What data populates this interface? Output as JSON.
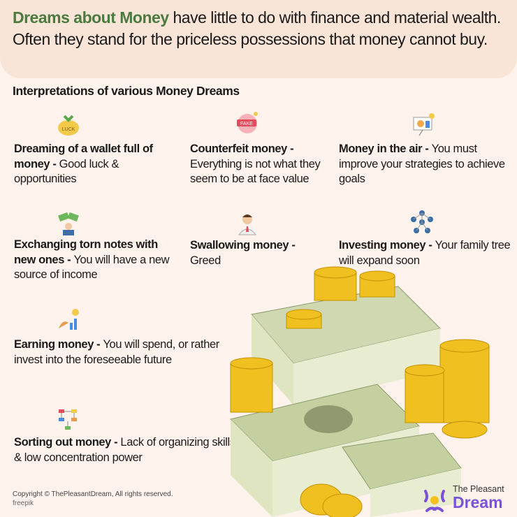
{
  "intro": {
    "highlight": "Dreams about Money",
    "rest": " have little to do with finance and material wealth. Often they stand for the priceless possessions that money cannot buy."
  },
  "subtitle": "Interpretations of various Money Dreams",
  "items": [
    {
      "title": "Dreaming of a wallet full of money - ",
      "text": "Good luck & opportunities",
      "icon": "luck-money-bag-icon"
    },
    {
      "title": "Counterfeit money - ",
      "text": "Everything is not what they seem to be at face value",
      "icon": "fake-tag-icon"
    },
    {
      "title": "Money in the air - ",
      "text": "You must improve your strategies to achieve goals",
      "icon": "presentation-board-icon"
    },
    {
      "title": "Exchanging torn notes with new ones - ",
      "text": "You will have a new source of income",
      "icon": "money-exchange-icon"
    },
    {
      "title": "Swallowing money - ",
      "text": "Greed",
      "icon": "businessman-icon"
    },
    {
      "title": "Investing money - ",
      "text": "Your family tree will expand soon",
      "icon": "network-people-icon"
    },
    {
      "title": "Earning money - ",
      "text": "You will spend, or rather invest into the foreseeable future",
      "icon": "money-growth-icon"
    },
    {
      "title": "Sorting out money - ",
      "text": "Lack of organizing skills & low concentration power",
      "icon": "flowchart-icon"
    }
  ],
  "footer": {
    "copyright": "Copyright © ThePleasantDream, All rights reserved.",
    "credit": "freepik"
  },
  "logo": {
    "line1": "The Pleasant",
    "line2": "Dream"
  },
  "colors": {
    "background": "#fdf3ec",
    "header": "#f8e5d7",
    "accent": "#4a7a3f",
    "logo": "#7b52d6"
  }
}
